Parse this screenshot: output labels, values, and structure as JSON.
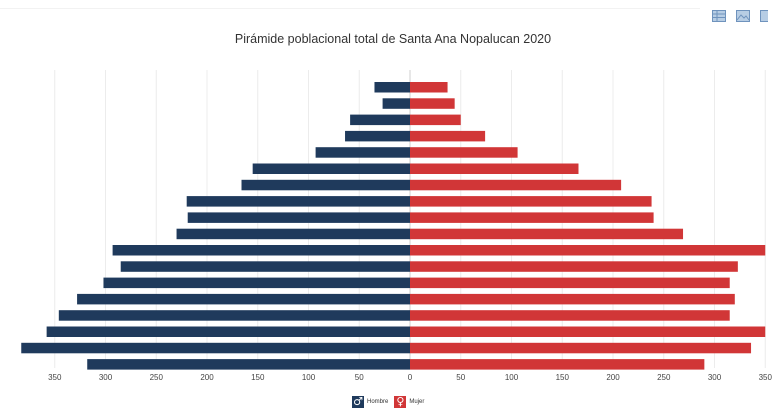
{
  "chart_data": {
    "type": "bar",
    "title": "Pirámide poblacional total de Santa Ana Nopalucan 2020",
    "orientation": "horizontal",
    "xlim": [
      -350,
      350
    ],
    "x_ticks": [
      350,
      300,
      250,
      200,
      150,
      100,
      50,
      0,
      50,
      100,
      150,
      200,
      250,
      300,
      350
    ],
    "grid": true,
    "legend_position": "bottom",
    "series": [
      {
        "name": "Hombre",
        "color": "#1f3a5c",
        "icon": "male-icon",
        "values": [
          35,
          27,
          59,
          64,
          93,
          155,
          166,
          220,
          219,
          230,
          293,
          285,
          302,
          328,
          346,
          358,
          383,
          318
        ]
      },
      {
        "name": "Mujer",
        "color": "#d13637",
        "icon": "female-icon",
        "values": [
          37,
          44,
          50,
          74,
          106,
          166,
          208,
          238,
          240,
          269,
          350,
          323,
          315,
          320,
          315,
          350,
          336,
          290
        ]
      }
    ]
  },
  "toolbar": {
    "buttons": [
      {
        "icon": "table-icon"
      },
      {
        "icon": "image-icon"
      },
      {
        "icon": "document-icon"
      }
    ]
  }
}
